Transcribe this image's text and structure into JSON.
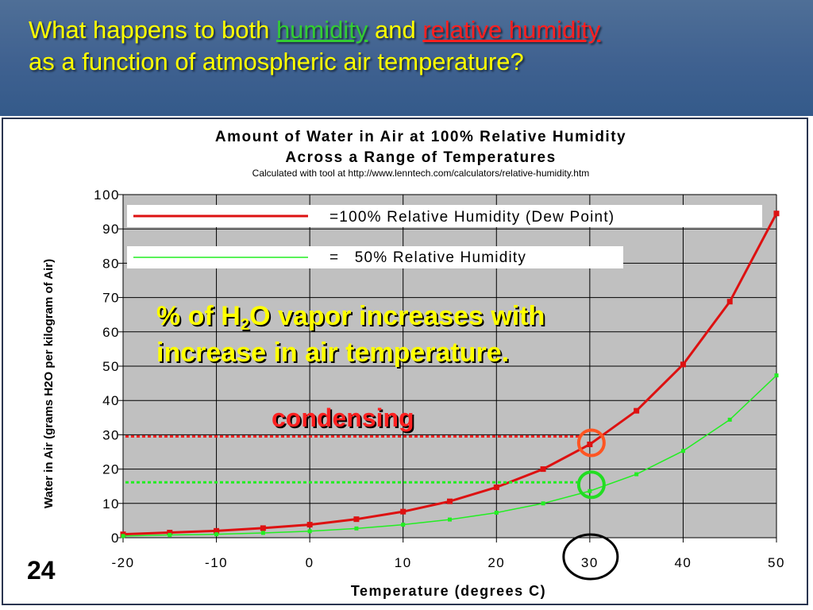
{
  "slide": {
    "title_part1": "What happens to both ",
    "title_green": "humidity",
    "title_part2": " and ",
    "title_red": "relative humidity",
    "title_line2": "as a function of atmospheric air temperature?",
    "number": "24"
  },
  "colors": {
    "title": "#ffff00",
    "series_100": "#dd1111",
    "series_50": "#22ee22",
    "plot_bg": "#c0c0c0"
  },
  "chart_data": {
    "type": "line",
    "title": "Amount of Water in Air at 100% Relative Humidity",
    "subtitle": "Across a Range of Temperatures",
    "source": "Calculated with tool at http://www.lenntech.com/calculators/relative-humidity.htm",
    "xlabel": "Temperature (degrees C)",
    "ylabel": "Water in Air (grams H2O per kilogram of Air)",
    "xlim": [
      -20,
      50
    ],
    "ylim": [
      0,
      100
    ],
    "x_ticks": [
      "-20",
      "-10",
      "0",
      "10",
      "20",
      "30",
      "40",
      "50"
    ],
    "y_ticks": [
      "0",
      "10",
      "20",
      "30",
      "40",
      "50",
      "60",
      "70",
      "80",
      "90",
      "100"
    ],
    "grid": true,
    "legend_position": "top-left",
    "series": [
      {
        "name": "=100% Relative Humidity (Dew Point)",
        "color": "#dd1111",
        "x": [
          -20,
          -15,
          -10,
          -5,
          0,
          5,
          10,
          15,
          20,
          25,
          30,
          35,
          40,
          45,
          50
        ],
        "y": [
          1.0,
          1.5,
          2.0,
          2.8,
          3.8,
          5.4,
          7.6,
          10.6,
          14.7,
          20.0,
          27.2,
          37.0,
          50.5,
          68.8,
          94.5
        ]
      },
      {
        "name": "=   50% Relative Humidity",
        "color": "#22ee22",
        "x": [
          -20,
          -15,
          -10,
          -5,
          0,
          5,
          10,
          15,
          20,
          25,
          30,
          35,
          40,
          45,
          50
        ],
        "y": [
          0.5,
          0.8,
          1.0,
          1.4,
          1.9,
          2.7,
          3.8,
          5.3,
          7.3,
          10.0,
          13.6,
          18.5,
          25.3,
          34.4,
          47.3
        ]
      }
    ],
    "annotations": {
      "vapor_line1": "% of H",
      "vapor_sub": "2",
      "vapor_line1b": "O vapor increases with",
      "vapor_line2": "increase in air temperature.",
      "condensing": "condensing",
      "highlight_x": 30,
      "highlight_100_y": 27.2,
      "highlight_50_y": 13.6
    }
  }
}
